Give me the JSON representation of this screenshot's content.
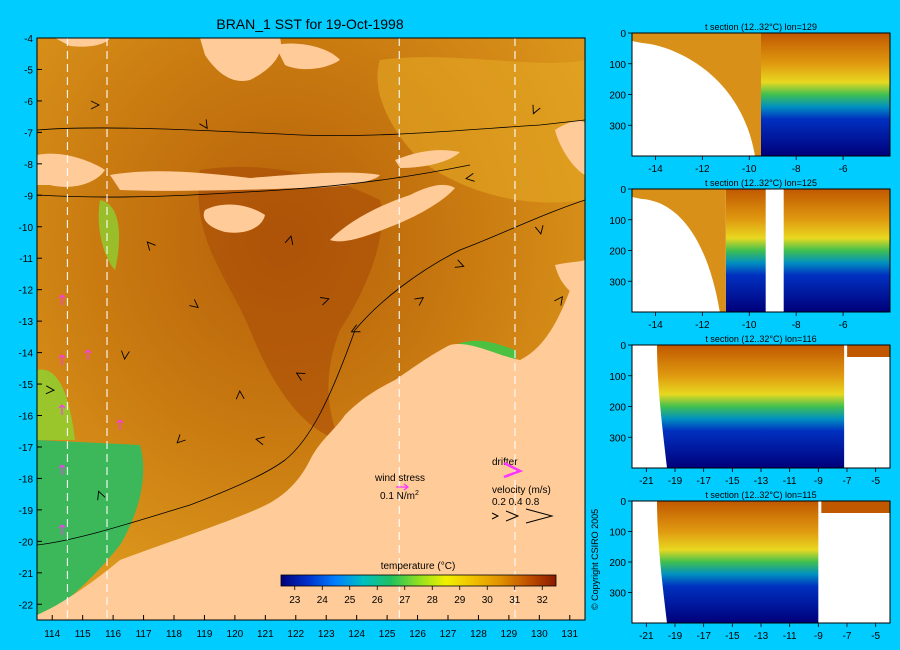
{
  "main_map": {
    "title": "BRAN_1 SST for 19-Oct-1998",
    "x_ticks": [
      "114",
      "115",
      "116",
      "117",
      "118",
      "119",
      "120",
      "121",
      "122",
      "123",
      "124",
      "125",
      "126",
      "127",
      "128",
      "129",
      "130",
      "131"
    ],
    "y_ticks": [
      "-4",
      "-5",
      "-6",
      "-7",
      "-8",
      "-9",
      "-10",
      "-11",
      "-12",
      "-13",
      "-14",
      "-15",
      "-16",
      "-17",
      "-18",
      "-19",
      "-20",
      "-21",
      "-22"
    ],
    "section_lons": [
      "114.5",
      "115.8",
      "125.4",
      "129.2"
    ],
    "colors": {
      "ocean_warm": "#c8760a",
      "land": "#ffcc99",
      "shelf_green": "#3cb85a",
      "background": "#00ccff",
      "drifter": "#ff33ff"
    }
  },
  "legend": {
    "wind_stress_label": "wind stress",
    "wind_stress_scale": "0.1 N/m",
    "wind_stress_sup": "2",
    "drifter_label": "drifter",
    "velocity_label": "velocity (m/s)",
    "velocity_scale": "0.2 0.4 0.8"
  },
  "colorbar": {
    "title": "temperature (°C)",
    "ticks": [
      "23",
      "24",
      "25",
      "26",
      "27",
      "28",
      "29",
      "30",
      "31",
      "32"
    ],
    "range": [
      22.5,
      32.5
    ]
  },
  "copyright": "© Copyright CSIRO 2005",
  "chart_data": [
    {
      "type": "heatmap",
      "title": "BRAN_1 SST for 19-Oct-1998",
      "xlim": [
        113.5,
        131.5
      ],
      "ylim": [
        -22.5,
        -4
      ],
      "xticks": [
        114,
        115,
        116,
        117,
        118,
        119,
        120,
        121,
        122,
        123,
        124,
        125,
        126,
        127,
        128,
        129,
        130,
        131
      ],
      "yticks": [
        -4,
        -5,
        -6,
        -7,
        -8,
        -9,
        -10,
        -11,
        -12,
        -13,
        -14,
        -15,
        -16,
        -17,
        -18,
        -19,
        -20,
        -21,
        -22
      ],
      "colorbar_label": "temperature (°C)",
      "colorbar_range": [
        22.5,
        32.5
      ]
    },
    {
      "type": "heatmap",
      "title": "t section (12..32°C) lon=129",
      "xlim": [
        -15,
        -4
      ],
      "xticks": [
        -14,
        -12,
        -10,
        -8,
        -6
      ],
      "yticks": [
        0,
        100,
        200,
        300
      ],
      "ylim": [
        400,
        0
      ],
      "land_edge_lat": -9.5
    },
    {
      "type": "heatmap",
      "title": "t section (12..32°C) lon=125",
      "xlim": [
        -15,
        -4
      ],
      "xticks": [
        -14,
        -12,
        -10,
        -8,
        -6
      ],
      "yticks": [
        0,
        100,
        200,
        300
      ],
      "ylim": [
        400,
        0
      ],
      "land_edge_lat": -11
    },
    {
      "type": "heatmap",
      "title": "t section (12..32°C) lon=116",
      "xlim": [
        -22,
        -4
      ],
      "xticks": [
        -21,
        -19,
        -17,
        -15,
        -13,
        -11,
        -9,
        -7,
        -5
      ],
      "yticks": [
        0,
        100,
        200,
        300
      ],
      "ylim": [
        400,
        0
      ],
      "land_edge_lat": -7.2
    },
    {
      "type": "heatmap",
      "title": "t section (12..32°C) lon=115",
      "xlim": [
        -22,
        -4
      ],
      "xticks": [
        -21,
        -19,
        -17,
        -15,
        -13,
        -11,
        -9,
        -7,
        -5
      ],
      "yticks": [
        0,
        100,
        200,
        300
      ],
      "ylim": [
        400,
        0
      ],
      "land_edge_lat": -9
    }
  ]
}
